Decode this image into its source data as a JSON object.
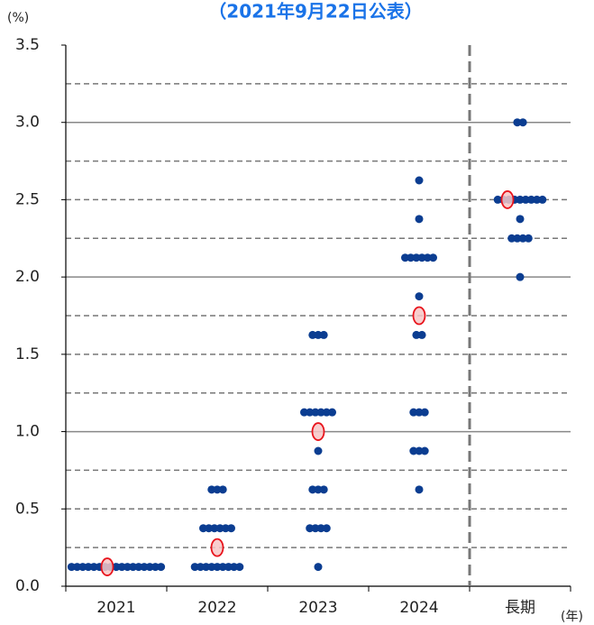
{
  "chart_data": {
    "type": "dotplot",
    "title": "（2021年9月22日公表）",
    "y_unit": "(%)",
    "x_unit": "(年)",
    "categories": [
      "2021",
      "2022",
      "2023",
      "2024",
      "長期"
    ],
    "dots": [
      [
        {
          "value": 0.125,
          "count": 17
        }
      ],
      [
        {
          "value": 0.125,
          "count": 9
        },
        {
          "value": 0.375,
          "count": 6
        },
        {
          "value": 0.625,
          "count": 3
        }
      ],
      [
        {
          "value": 0.125,
          "count": 1
        },
        {
          "value": 0.375,
          "count": 4
        },
        {
          "value": 0.625,
          "count": 3
        },
        {
          "value": 0.875,
          "count": 1
        },
        {
          "value": 1.125,
          "count": 6
        },
        {
          "value": 1.625,
          "count": 3
        }
      ],
      [
        {
          "value": 0.625,
          "count": 1
        },
        {
          "value": 0.875,
          "count": 3
        },
        {
          "value": 1.125,
          "count": 3
        },
        {
          "value": 1.625,
          "count": 2
        },
        {
          "value": 1.875,
          "count": 1
        },
        {
          "value": 2.125,
          "count": 6
        },
        {
          "value": 2.375,
          "count": 1
        },
        {
          "value": 2.625,
          "count": 1
        }
      ],
      [
        {
          "value": 2.0,
          "count": 1
        },
        {
          "value": 2.25,
          "count": 4
        },
        {
          "value": 2.375,
          "count": 1
        },
        {
          "value": 2.5,
          "count": 9
        },
        {
          "value": 3.0,
          "count": 2
        }
      ]
    ],
    "medians": [
      0.125,
      0.25,
      1.0,
      1.75,
      2.5
    ],
    "dot_color": "#0b3d91",
    "median_color": "#e8141c",
    "ylim": [
      0,
      3.5
    ],
    "yticks": [
      {
        "value": 0,
        "label": "0.0"
      },
      0.5,
      {
        "value": 1,
        "label": "1.0"
      },
      1.5,
      {
        "value": 2,
        "label": "2.0"
      },
      2.5,
      {
        "value": 3,
        "label": "3.0"
      },
      3.5
    ],
    "solid_grid": [
      1,
      2,
      3
    ],
    "dashed_grid": [
      0.25,
      0.5,
      0.75,
      1.25,
      1.5,
      1.75,
      2.25,
      2.5,
      2.75,
      3.25
    ]
  }
}
